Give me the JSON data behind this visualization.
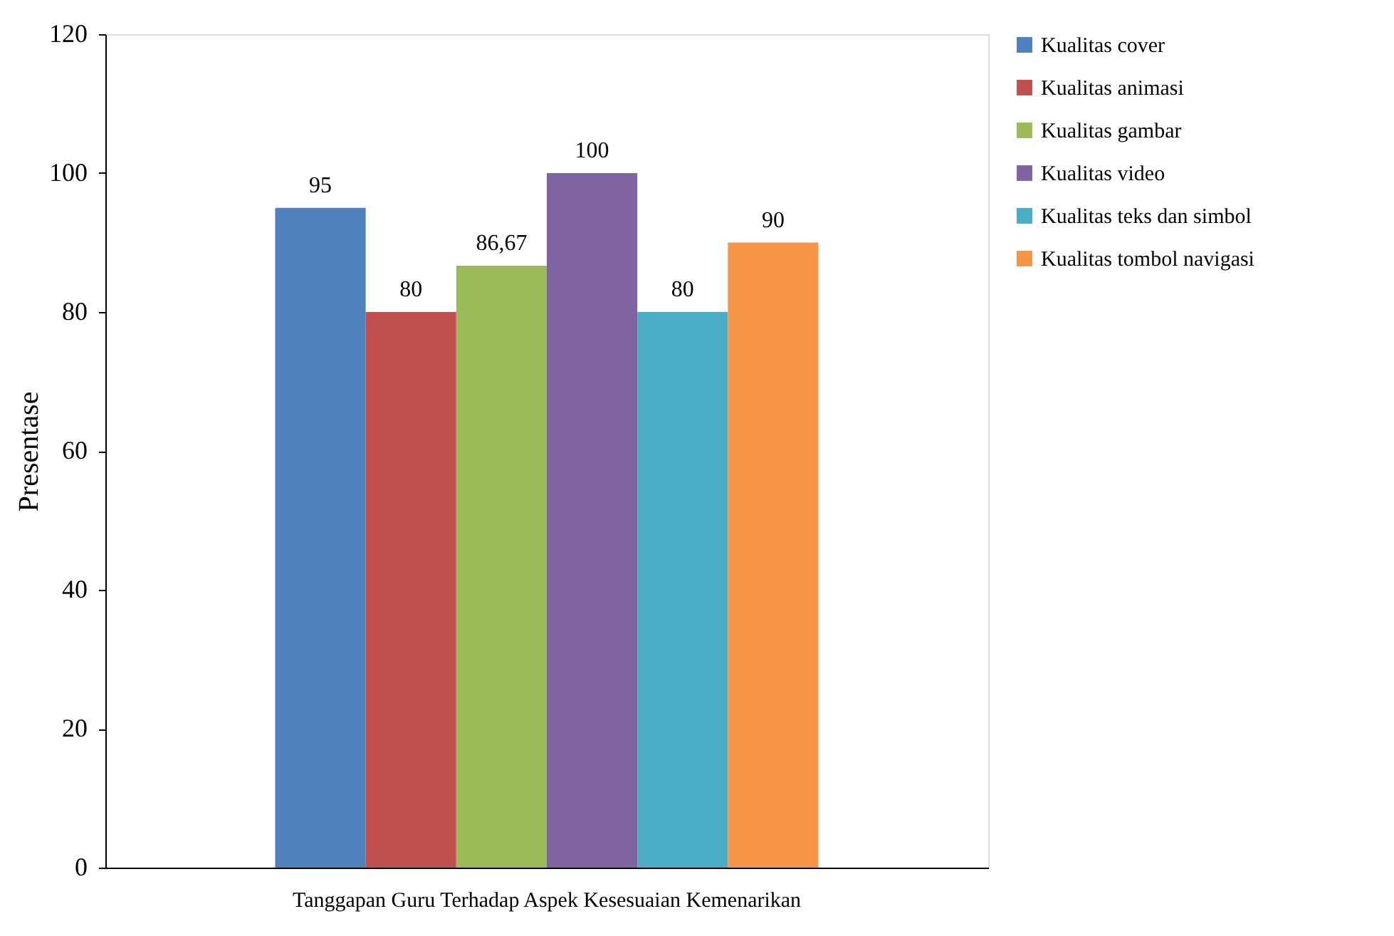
{
  "chart_data": {
    "type": "bar",
    "ylabel": "Presentase",
    "categories": [
      "Tanggapan Guru Terhadap Aspek Kesesuaian Kemenarikan"
    ],
    "series": [
      {
        "name": "Kualitas cover",
        "color": "#4f81bd",
        "values": [
          95
        ],
        "value_labels": [
          "95"
        ]
      },
      {
        "name": "Kualitas animasi",
        "color": "#c0504d",
        "values": [
          80
        ],
        "value_labels": [
          "80"
        ]
      },
      {
        "name": "Kualitas gambar",
        "color": "#9bbb59",
        "values": [
          86.67
        ],
        "value_labels": [
          "86,67"
        ]
      },
      {
        "name": "Kualitas video",
        "color": "#8064a2",
        "values": [
          100
        ],
        "value_labels": [
          "100"
        ]
      },
      {
        "name": "Kualitas teks dan simbol",
        "color": "#4bacc6",
        "values": [
          80
        ],
        "value_labels": [
          "80"
        ]
      },
      {
        "name": "Kualitas tombol navigasi",
        "color": "#f79646",
        "values": [
          90
        ],
        "value_labels": [
          "90"
        ]
      }
    ],
    "ylim": [
      0,
      120
    ],
    "yticks": [
      0,
      20,
      40,
      60,
      80,
      100,
      120
    ],
    "grid": false,
    "legend": "right"
  }
}
